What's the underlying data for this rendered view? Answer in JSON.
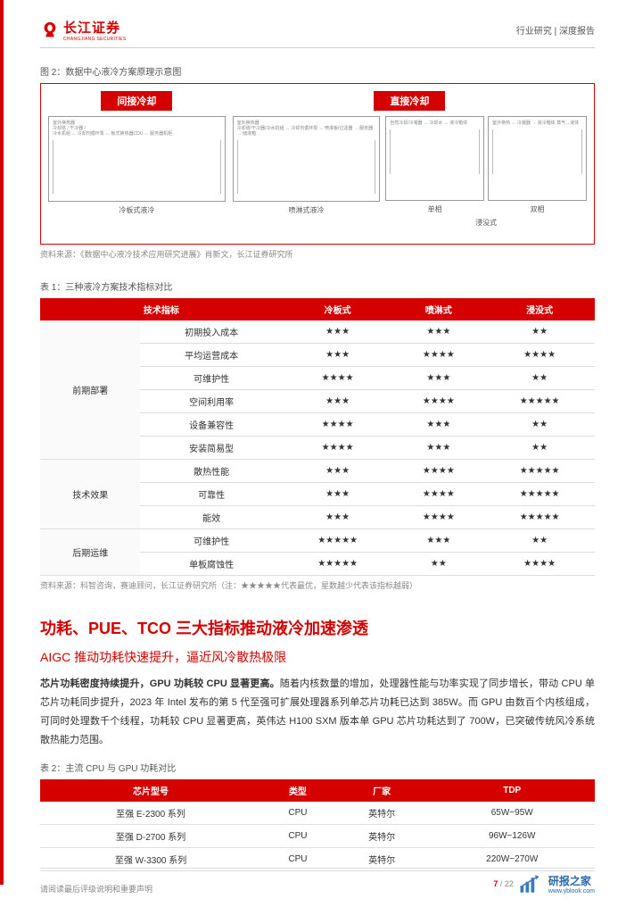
{
  "header": {
    "logo_cn": "长江证券",
    "logo_en": "CHANGJIANG SECURITIES",
    "right": "行业研究 | 深度报告"
  },
  "figure2": {
    "caption": "图 2：数据中心液冷方案原理示意图",
    "left_header": "间接冷却",
    "right_header": "直接冷却",
    "label_coldplate": "冷板式液冷",
    "label_spray": "喷淋式液冷",
    "label_single": "单相",
    "label_dual": "双相",
    "label_immersion": "浸没式",
    "source": "资料来源：《数据中心液冷技术应用研究进展》肖新文，长江证券研究所"
  },
  "table1": {
    "title": "表 1：三种液冷方案技术指标对比",
    "columns": [
      "技术指标",
      "冷板式",
      "喷淋式",
      "浸没式"
    ],
    "groups": [
      {
        "cat": "前期部署",
        "rows": [
          {
            "metric": "初期投入成本",
            "v": [
              "★★★",
              "★★★",
              "★★"
            ]
          },
          {
            "metric": "平均运营成本",
            "v": [
              "★★★",
              "★★★★",
              "★★★★"
            ]
          },
          {
            "metric": "可维护性",
            "v": [
              "★★★★",
              "★★★",
              "★★"
            ]
          },
          {
            "metric": "空间利用率",
            "v": [
              "★★★",
              "★★★★",
              "★★★★★"
            ]
          },
          {
            "metric": "设备兼容性",
            "v": [
              "★★★★",
              "★★★",
              "★★"
            ]
          },
          {
            "metric": "安装简易型",
            "v": [
              "★★★★",
              "★★★",
              "★★"
            ]
          }
        ]
      },
      {
        "cat": "技术效果",
        "rows": [
          {
            "metric": "散热性能",
            "v": [
              "★★★",
              "★★★★",
              "★★★★★"
            ]
          },
          {
            "metric": "可靠性",
            "v": [
              "★★★",
              "★★★★",
              "★★★★★"
            ]
          },
          {
            "metric": "能效",
            "v": [
              "★★★",
              "★★★★",
              "★★★★★"
            ]
          }
        ]
      },
      {
        "cat": "后期运维",
        "rows": [
          {
            "metric": "可维护性",
            "v": [
              "★★★★★",
              "★★★",
              "★★"
            ]
          },
          {
            "metric": "单板腐蚀性",
            "v": [
              "★★★★★",
              "★★",
              "★★★★"
            ]
          }
        ]
      }
    ],
    "note": "资料来源：科智咨询，赛迪顾问，长江证券研究所（注：★★★★★代表最优，星数越少代表该指标越弱）"
  },
  "section": {
    "title": "功耗、PUE、TCO 三大指标推动液冷加速渗透",
    "subtitle": "AIGC 推动功耗快速提升，逼近风冷散热极限",
    "body": "芯片功耗密度持续提升，GPU 功耗较 CPU 显著更高。随着内核数量的增加，处理器性能与功率实现了同步增长，带动 CPU 单芯片功耗同步提升，2023 年 Intel 发布的第 5 代至强可扩展处理器系列单芯片功耗已达到 385W。而 GPU 由数百个内核组成，可同时处理数千个线程，功耗较 CPU 显著更高，英伟达 H100 SXM 版本单 GPU 芯片功耗达到了 700W，已突破传统风冷系统散热能力范围。",
    "body_bold_prefix": "芯片功耗密度持续提升，GPU 功耗较 CPU 显著更高。"
  },
  "table2": {
    "title": "表 2：主流 CPU 与 GPU 功耗对比",
    "columns": [
      "芯片型号",
      "类型",
      "厂家",
      "TDP"
    ],
    "rows": [
      [
        "至强 E-2300 系列",
        "CPU",
        "英特尔",
        "65W~95W"
      ],
      [
        "至强 D-2700 系列",
        "CPU",
        "英特尔",
        "96W~126W"
      ],
      [
        "至强 W-3300 系列",
        "CPU",
        "英特尔",
        "220W~270W"
      ]
    ]
  },
  "footer": {
    "disclaimer": "请阅读最后评级说明和重要声明",
    "page_cur": "7",
    "page_total": "22",
    "wm_cn": "研报之家",
    "wm_url": "www.yblook.com"
  }
}
